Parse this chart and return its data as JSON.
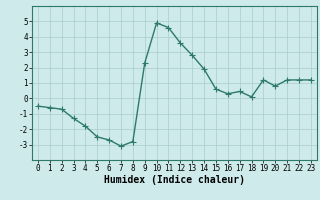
{
  "x": [
    0,
    1,
    2,
    3,
    4,
    5,
    6,
    7,
    8,
    9,
    10,
    11,
    12,
    13,
    14,
    15,
    16,
    17,
    18,
    19,
    20,
    21,
    22,
    23
  ],
  "y": [
    -0.5,
    -0.6,
    -0.7,
    -1.3,
    -1.8,
    -2.5,
    -2.7,
    -3.1,
    -2.8,
    2.3,
    4.9,
    4.6,
    3.6,
    2.8,
    1.9,
    0.6,
    0.3,
    0.45,
    0.1,
    1.2,
    0.8,
    1.2,
    1.2,
    1.2
  ],
  "line_color": "#2d7a6a",
  "marker": "+",
  "marker_size": 4,
  "linewidth": 1.0,
  "background_color": "#ceeaea",
  "grid_color": "#aacccc",
  "xlabel": "Humidex (Indice chaleur)",
  "ylabel": "",
  "ylim": [
    -4,
    6
  ],
  "xlim": [
    -0.5,
    23.5
  ],
  "yticks": [
    -3,
    -2,
    -1,
    0,
    1,
    2,
    3,
    4,
    5
  ],
  "xticks": [
    0,
    1,
    2,
    3,
    4,
    5,
    6,
    7,
    8,
    9,
    10,
    11,
    12,
    13,
    14,
    15,
    16,
    17,
    18,
    19,
    20,
    21,
    22,
    23
  ],
  "tick_fontsize": 5.5,
  "xlabel_fontsize": 7,
  "axis_color": "#2d7a6a"
}
